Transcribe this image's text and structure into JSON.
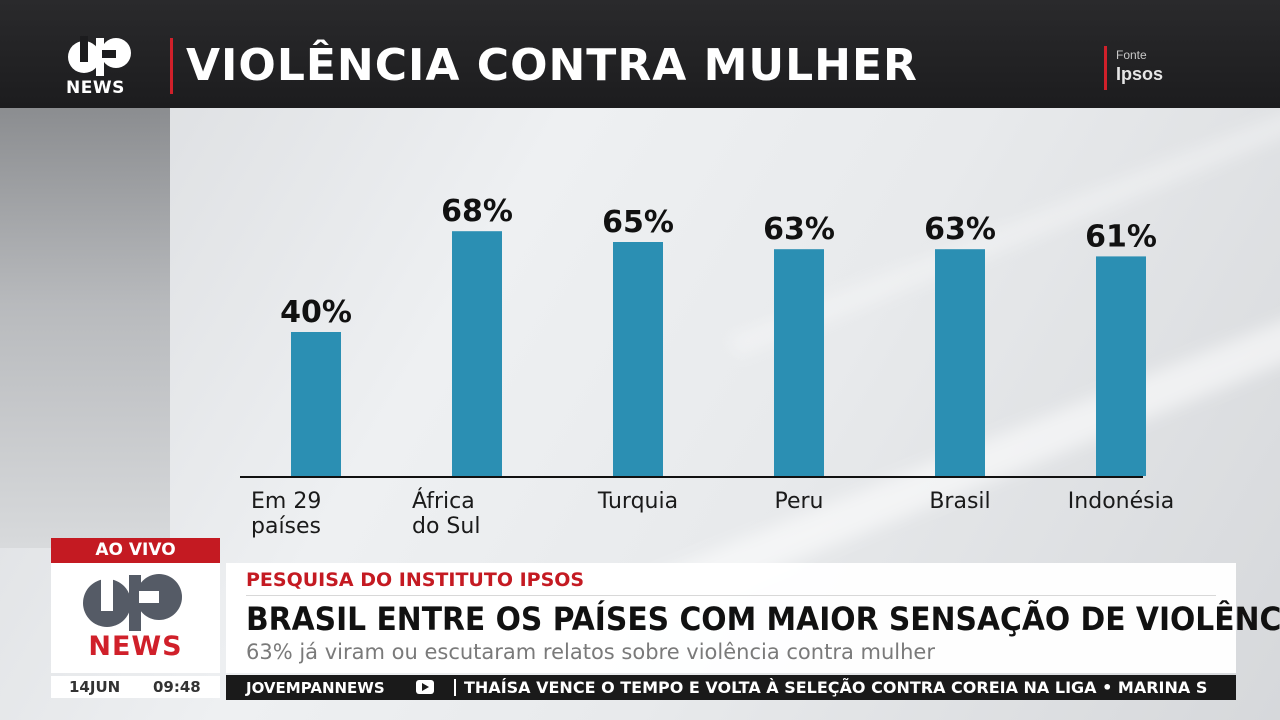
{
  "header": {
    "logo_text": "NEWS",
    "title": "VIOLÊNCIA CONTRA MULHER",
    "source_label": "Fonte",
    "source_value": "Ipsos"
  },
  "chart_data": {
    "type": "bar",
    "title": "",
    "xlabel": "",
    "ylabel": "",
    "categories": [
      "Em 29 países",
      "África do Sul",
      "Turquia",
      "Peru",
      "Brasil",
      "Indonésia"
    ],
    "category_lines": [
      [
        "Em 29",
        "países"
      ],
      [
        "África",
        "do Sul"
      ],
      [
        "Turquia"
      ],
      [
        "Peru"
      ],
      [
        "Brasil"
      ],
      [
        "Indonésia"
      ]
    ],
    "values": [
      40,
      68,
      65,
      63,
      63,
      61
    ],
    "value_labels": [
      "40%",
      "68%",
      "65%",
      "63%",
      "63%",
      "61%"
    ],
    "unit": "%",
    "ylim": [
      0,
      100
    ],
    "bar_color": "#2b8fb3",
    "grid": false
  },
  "lower_third": {
    "live_label": "AO VIVO",
    "logo_text": "NEWS",
    "date": "14JUN",
    "time": "09:48",
    "kicker": "PESQUISA DO INSTITUTO IPSOS",
    "headline": "BRASIL ENTRE OS PAÍSES COM MAIOR SENSAÇÃO DE VIOLÊNCIA",
    "subline": "63% já viram ou escutaram relatos sobre violência contra mulher",
    "ticker_brand": "JOVEMPANNEWS",
    "ticker_text": "THAÍSA VENCE O TEMPO E VOLTA À SELEÇÃO CONTRA COREIA NA LIGA • MARINA S"
  },
  "colors": {
    "accent_red": "#c41a22",
    "bar_blue": "#2b8fb3",
    "topbar": "#1c1c1e"
  }
}
